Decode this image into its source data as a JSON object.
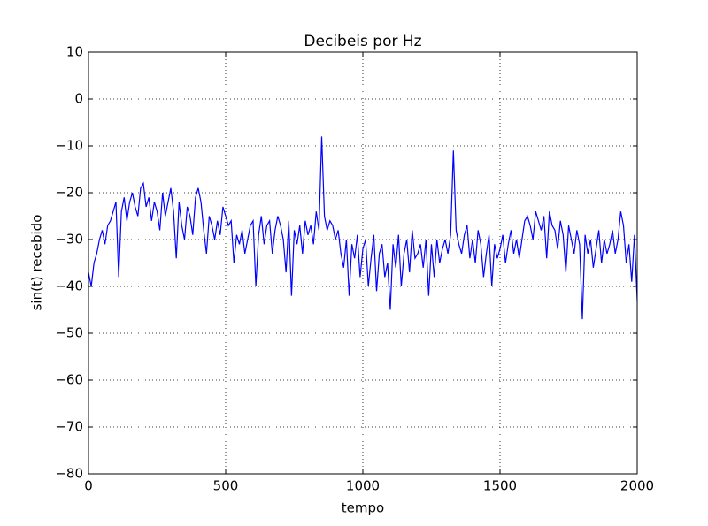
{
  "chart_data": {
    "type": "line",
    "title": "Decibeis por Hz",
    "xlabel": "tempo",
    "ylabel": "sin(t) recebido",
    "xlim": [
      0,
      2000
    ],
    "xticks": [
      0,
      500,
      1000,
      1500,
      2000
    ],
    "ylim": [
      -80,
      10
    ],
    "yticks": [
      {
        "value": -80,
        "label": "−80"
      },
      {
        "value": -70,
        "label": "−70"
      },
      {
        "value": -60,
        "label": "−60"
      },
      {
        "value": -50,
        "label": "−50"
      },
      {
        "value": -40,
        "label": "−40"
      },
      {
        "value": -30,
        "label": "−30"
      },
      {
        "value": -20,
        "label": "−20"
      },
      {
        "value": -10,
        "label": "−10"
      },
      0,
      10
    ],
    "grid": true,
    "x": [
      0,
      10,
      20,
      30,
      40,
      50,
      60,
      70,
      80,
      90,
      100,
      110,
      120,
      130,
      140,
      150,
      160,
      170,
      180,
      190,
      200,
      210,
      220,
      230,
      240,
      250,
      260,
      270,
      280,
      290,
      300,
      310,
      320,
      330,
      340,
      350,
      360,
      370,
      380,
      390,
      400,
      410,
      420,
      430,
      440,
      450,
      460,
      470,
      480,
      490,
      500,
      510,
      520,
      530,
      540,
      550,
      560,
      570,
      580,
      590,
      600,
      610,
      620,
      630,
      640,
      650,
      660,
      670,
      680,
      690,
      700,
      710,
      720,
      730,
      740,
      750,
      760,
      770,
      780,
      790,
      800,
      810,
      820,
      830,
      840,
      850,
      860,
      870,
      880,
      890,
      900,
      910,
      920,
      930,
      940,
      950,
      960,
      970,
      980,
      990,
      1000,
      1010,
      1020,
      1030,
      1040,
      1050,
      1060,
      1070,
      1080,
      1090,
      1100,
      1110,
      1120,
      1130,
      1140,
      1150,
      1160,
      1170,
      1180,
      1190,
      1200,
      1210,
      1220,
      1230,
      1240,
      1250,
      1260,
      1270,
      1280,
      1290,
      1300,
      1310,
      1320,
      1330,
      1340,
      1350,
      1360,
      1370,
      1380,
      1390,
      1400,
      1410,
      1420,
      1430,
      1440,
      1450,
      1460,
      1470,
      1480,
      1490,
      1500,
      1510,
      1520,
      1530,
      1540,
      1550,
      1560,
      1570,
      1580,
      1590,
      1600,
      1610,
      1620,
      1630,
      1640,
      1650,
      1660,
      1670,
      1680,
      1690,
      1700,
      1710,
      1720,
      1730,
      1740,
      1750,
      1760,
      1770,
      1780,
      1790,
      1800,
      1810,
      1820,
      1830,
      1840,
      1850,
      1860,
      1870,
      1880,
      1890,
      1900,
      1910,
      1920,
      1930,
      1940,
      1950,
      1960,
      1970,
      1980,
      1990,
      2000
    ],
    "series": [
      {
        "name": "sin(t)",
        "color": "#0000ff",
        "values": [
          -37,
          -40,
          -35,
          -33,
          -30,
          -28,
          -31,
          -27,
          -26,
          -24,
          -22,
          -38,
          -24,
          -21,
          -26,
          -22,
          -20,
          -23,
          -25,
          -19,
          -18,
          -23,
          -21,
          -26,
          -22,
          -24,
          -28,
          -20,
          -25,
          -22,
          -19,
          -24,
          -34,
          -22,
          -27,
          -30,
          -23,
          -25,
          -29,
          -21,
          -19,
          -22,
          -28,
          -33,
          -25,
          -27,
          -30,
          -26,
          -29,
          -23,
          -25,
          -27,
          -26,
          -35,
          -29,
          -31,
          -28,
          -33,
          -30,
          -27,
          -26,
          -40,
          -29,
          -25,
          -31,
          -27,
          -26,
          -33,
          -28,
          -25,
          -27,
          -30,
          -37,
          -26,
          -42,
          -28,
          -31,
          -27,
          -33,
          -26,
          -29,
          -27,
          -31,
          -24,
          -28,
          -8,
          -25,
          -28,
          -26,
          -27,
          -30,
          -28,
          -33,
          -36,
          -30,
          -42,
          -31,
          -34,
          -29,
          -38,
          -32,
          -30,
          -40,
          -34,
          -29,
          -41,
          -33,
          -31,
          -38,
          -35,
          -45,
          -31,
          -36,
          -29,
          -40,
          -33,
          -30,
          -37,
          -28,
          -34,
          -33,
          -31,
          -36,
          -30,
          -42,
          -31,
          -38,
          -30,
          -35,
          -32,
          -30,
          -33,
          -29,
          -11,
          -28,
          -31,
          -33,
          -29,
          -27,
          -34,
          -30,
          -35,
          -28,
          -31,
          -38,
          -33,
          -29,
          -40,
          -31,
          -34,
          -32,
          -29,
          -35,
          -31,
          -28,
          -33,
          -30,
          -34,
          -30,
          -26,
          -25,
          -27,
          -30,
          -24,
          -26,
          -28,
          -25,
          -34,
          -24,
          -27,
          -28,
          -32,
          -26,
          -29,
          -37,
          -27,
          -30,
          -33,
          -28,
          -31,
          -47,
          -29,
          -33,
          -30,
          -36,
          -32,
          -28,
          -35,
          -30,
          -33,
          -31,
          -28,
          -33,
          -30,
          -24,
          -27,
          -35,
          -31,
          -39,
          -29,
          -43
        ]
      }
    ]
  }
}
